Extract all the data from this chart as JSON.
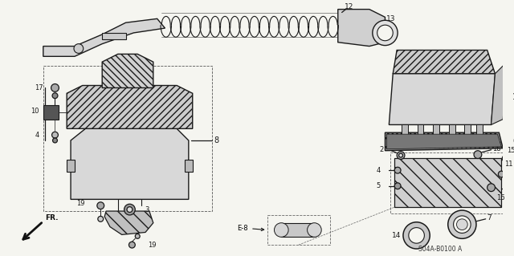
{
  "bg_color": "#f5f5f0",
  "fig_width": 6.4,
  "fig_height": 3.19,
  "dpi": 100,
  "diagram_code": "S04A-B0100 A",
  "line_color": "#1a1a1a",
  "lw_main": 0.9
}
